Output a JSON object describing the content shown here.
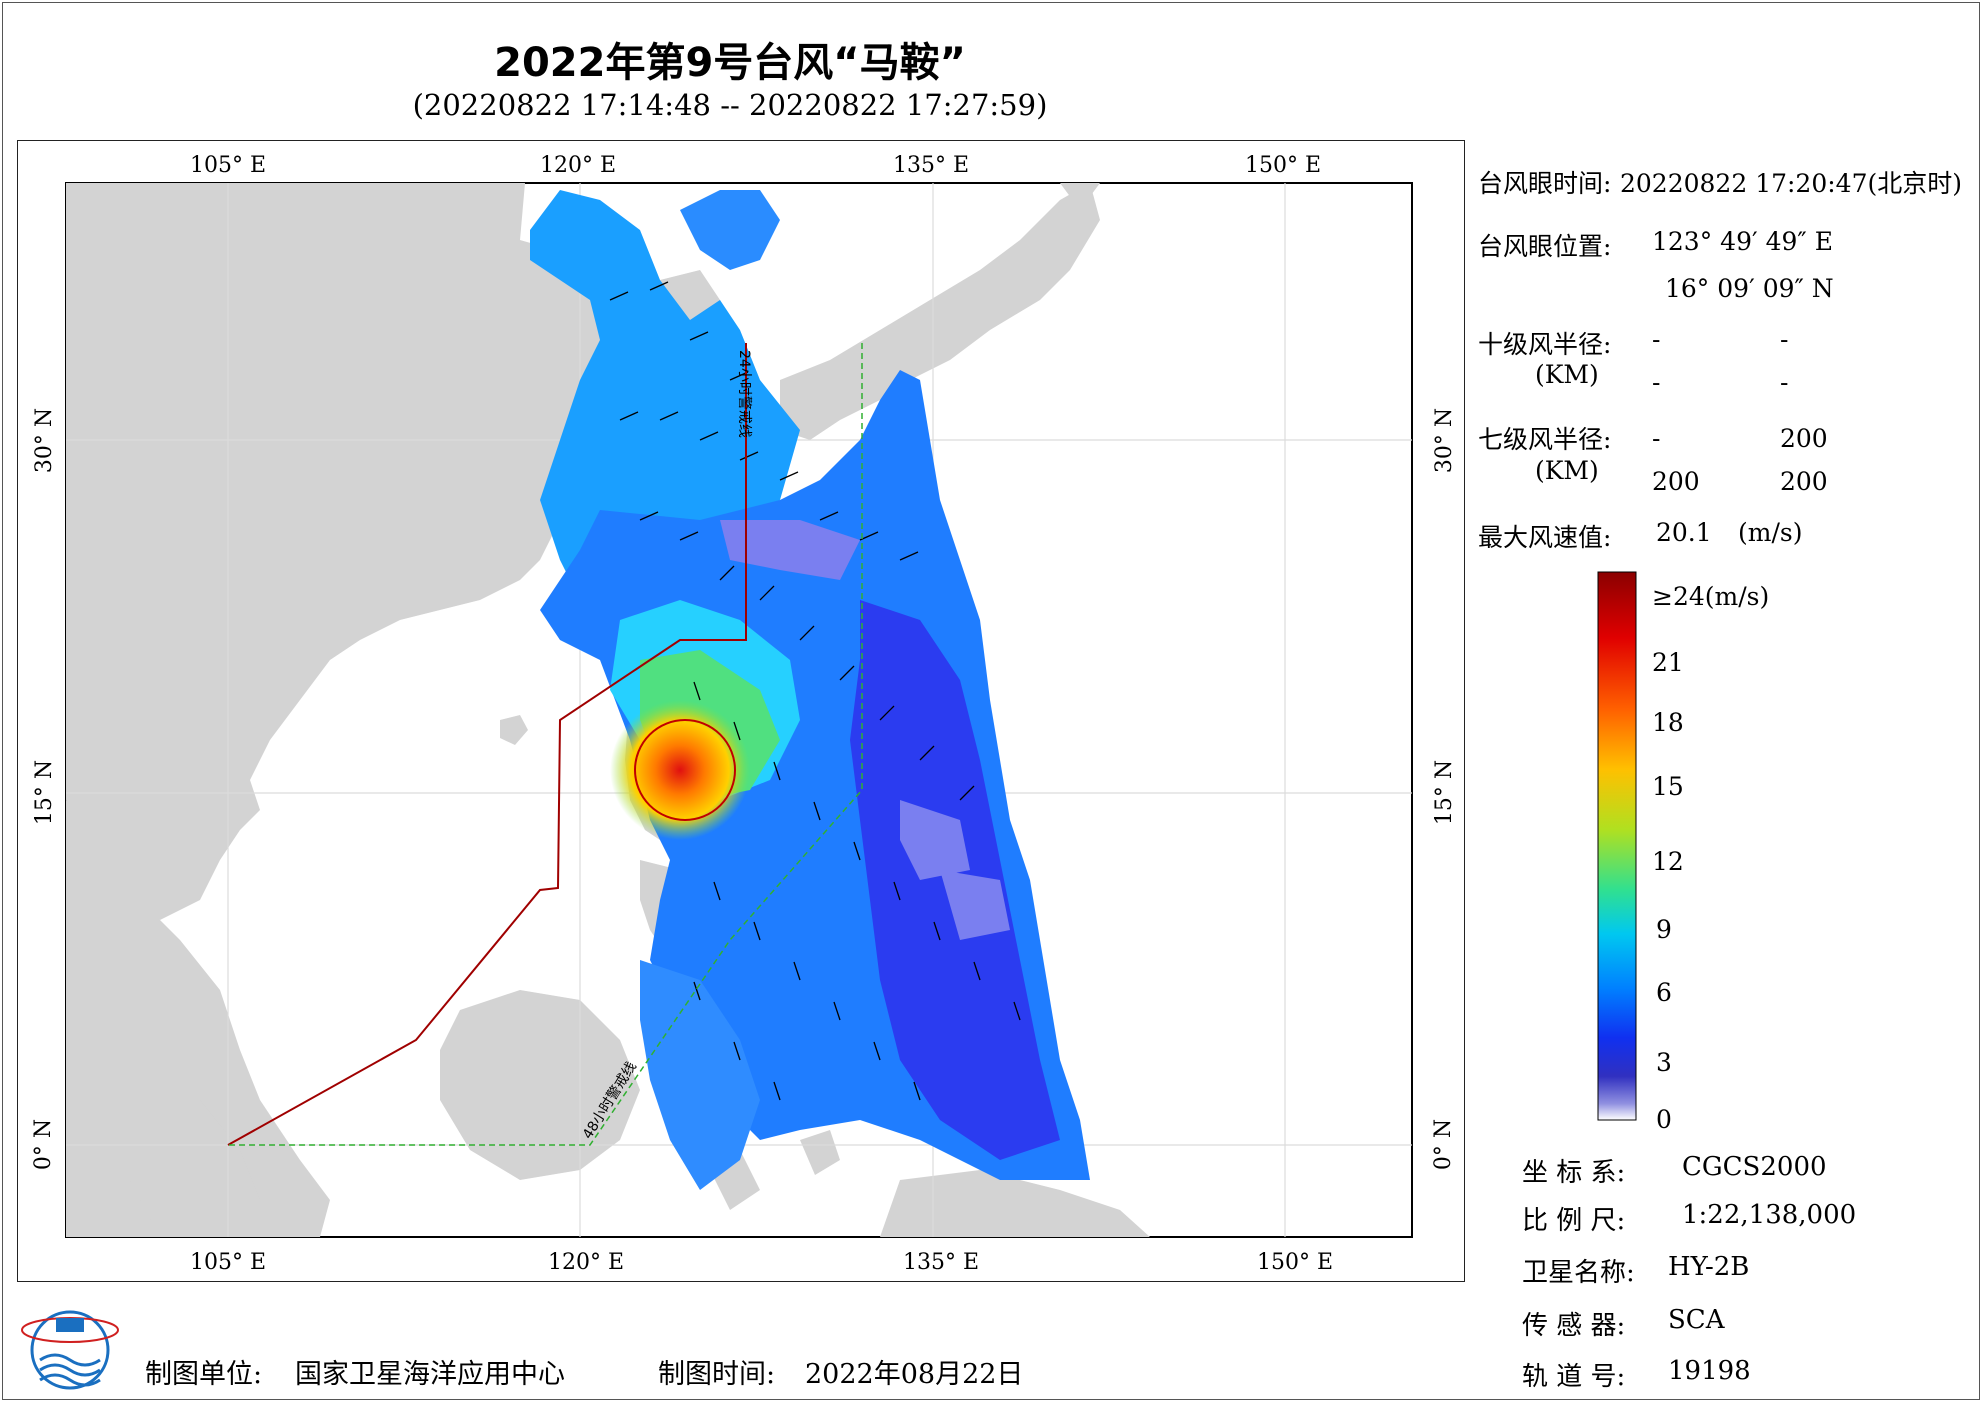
{
  "header": {
    "title": "2022年第9号台风“马鞍”",
    "subtitle": "(20220822 17:14:48 -- 20220822 17:27:59)"
  },
  "axes": {
    "lon_ticks_top": [
      "105° E",
      "120° E",
      "135° E",
      "150° E"
    ],
    "lon_ticks_bottom": [
      "105° E",
      "120° E",
      "135° E",
      "150° E"
    ],
    "lat_ticks_left": [
      "30° N",
      "15° N",
      "0° N"
    ],
    "lat_ticks_right": [
      "30° N",
      "15° N",
      "0° N"
    ]
  },
  "map_labels": {
    "line_24h": "24小时警戒线",
    "line_48h": "48小时警戒线"
  },
  "typhoon_info": {
    "eye_time_label": "台风眼时间:",
    "eye_time_value": "20220822 17:20:47(北京时)",
    "eye_pos_label": "台风眼位置:",
    "eye_lon": "123° 49′ 49″ E",
    "eye_lat": "16° 09′ 09″ N",
    "r10_label": "十级风半径:",
    "r10_unit": "(KM)",
    "r10_values": [
      "-",
      "-",
      "-",
      "-"
    ],
    "r7_label": "七级风半径:",
    "r7_unit": "(KM)",
    "r7_values": [
      "-",
      "200",
      "200",
      "200"
    ],
    "max_wind_label": "最大风速值:",
    "max_wind_value": "20.1",
    "max_wind_unit": "(m/s)"
  },
  "colorbar": {
    "labels": [
      "≥24(m/s)",
      "21",
      "18",
      "15",
      "12",
      "9",
      "6",
      "3",
      "0"
    ],
    "colors": [
      "#8b0000",
      "#e00000",
      "#ff6000",
      "#ffc000",
      "#c0e020",
      "#40e080",
      "#00d0e0",
      "#0090ff",
      "#1040ff",
      "#2020d0",
      "#7070e0",
      "#ffffff"
    ]
  },
  "metadata": {
    "coord_label": "坐 标 系:",
    "coord_value": "CGCS2000",
    "scale_label": "比 例 尺:",
    "scale_value": "1:22,138,000",
    "satellite_label": "卫星名称:",
    "satellite_value": "HY-2B",
    "sensor_label": "传 感 器:",
    "sensor_value": "SCA",
    "orbit_label": "轨 道 号:",
    "orbit_value": "19198"
  },
  "footer": {
    "producer_label": "制图单位:",
    "producer_value": "国家卫星海洋应用中心",
    "date_label": "制图时间:",
    "date_value": "2022年08月22日"
  },
  "colors": {
    "land": "#d3d3d3",
    "ocean": "#ffffff",
    "warning_24h": "#a00000",
    "warning_48h": "#30b030",
    "grid": "#dddddd"
  }
}
